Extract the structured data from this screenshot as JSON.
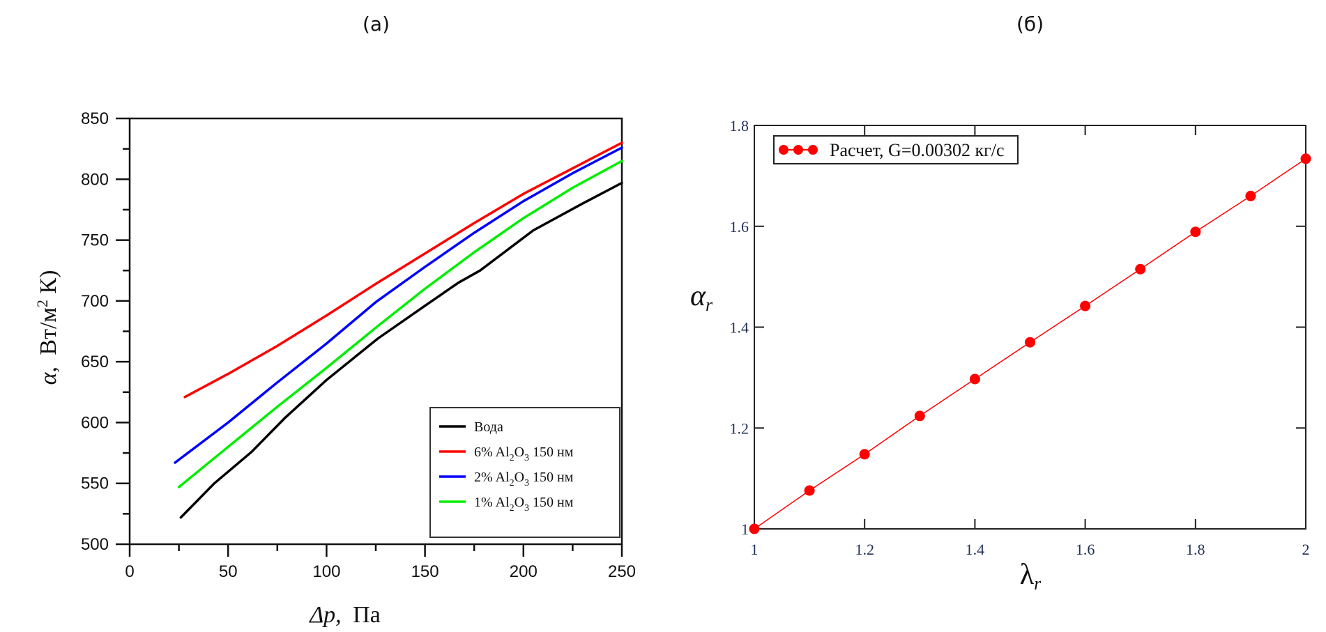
{
  "panels": {
    "a_label": "(a)",
    "b_label": "(б)"
  },
  "chart_data": [
    {
      "type": "line",
      "panel": "(a)",
      "title": "",
      "xlabel": "Δp, Па",
      "xlabel_italic": "Δp,",
      "xlabel_unit": "Па",
      "ylabel": "α, Вт/м² К)",
      "ylabel_symbol": "α,",
      "ylabel_unit": "Вт/м",
      "ylabel_sup": "2",
      "ylabel_tail": " К)",
      "xlim": [
        0,
        250
      ],
      "ylim": [
        500,
        850
      ],
      "xticks": [
        0,
        50,
        100,
        150,
        200,
        250
      ],
      "xtick_labels": [
        "0",
        "50",
        "100",
        "150",
        "200",
        "250"
      ],
      "yticks": [
        500,
        550,
        600,
        650,
        700,
        750,
        800,
        850
      ],
      "ytick_labels": [
        "500",
        "550",
        "600",
        "650",
        "700",
        "750",
        "800",
        "850"
      ],
      "grid": false,
      "legend_position": "bottom-right",
      "series": [
        {
          "name": "Вода",
          "color": "#000000",
          "x": [
            26,
            43,
            62,
            79,
            100,
            126,
            150,
            167,
            178,
            205,
            230,
            250
          ],
          "y": [
            522,
            550,
            576,
            604,
            635,
            669,
            696,
            715,
            725,
            758,
            780,
            797
          ]
        },
        {
          "name": "6% Al₂O₃ 150 нм",
          "color": "#ff0000",
          "x": [
            28,
            50,
            75,
            100,
            125,
            150,
            175,
            200,
            225,
            250
          ],
          "y": [
            621,
            640,
            663,
            688,
            714,
            739,
            764,
            788,
            809,
            830
          ]
        },
        {
          "name": "2% Al₂O₃ 150 нм",
          "color": "#0000ff",
          "x": [
            23,
            50,
            75,
            100,
            125,
            150,
            175,
            200,
            225,
            250
          ],
          "y": [
            567,
            600,
            633,
            665,
            699,
            728,
            756,
            782,
            805,
            826
          ]
        },
        {
          "name": "1% Al₂O₃ 150 нм",
          "color": "#00ee00",
          "x": [
            25,
            50,
            75,
            100,
            125,
            150,
            175,
            200,
            225,
            250
          ],
          "y": [
            547,
            580,
            613,
            645,
            678,
            710,
            740,
            768,
            793,
            815
          ]
        }
      ],
      "legend": [
        {
          "pre": "Вода",
          "sub1": "",
          "mid": "",
          "sub2": "",
          "post": ""
        },
        {
          "pre": "6% Al",
          "sub1": "2",
          "mid": "O",
          "sub2": "3",
          "post": " 150 нм"
        },
        {
          "pre": "2% Al",
          "sub1": "2",
          "mid": "O",
          "sub2": "3",
          "post": " 150 нм"
        },
        {
          "pre": "1% Al",
          "sub1": "2",
          "mid": "O",
          "sub2": "3",
          "post": " 150 нм"
        }
      ]
    },
    {
      "type": "line",
      "panel": "(б)",
      "title": "",
      "xlabel": "λr",
      "xlabel_main": "λ",
      "xlabel_sub": "r",
      "ylabel": "αr",
      "ylabel_main": "α",
      "ylabel_sub": "r",
      "xlim": [
        1,
        2
      ],
      "ylim": [
        1,
        1.8
      ],
      "xticks": [
        1,
        1.2,
        1.4,
        1.6,
        1.8,
        2
      ],
      "xtick_labels": [
        "1",
        "1.2",
        "1.4",
        "1.6",
        "1.8",
        "2"
      ],
      "yticks": [
        1,
        1.2,
        1.4,
        1.6,
        1.8
      ],
      "ytick_labels": [
        "1",
        "1.2",
        "1.4",
        "1.6",
        "1.8"
      ],
      "grid": false,
      "legend_position": "top-left",
      "series": [
        {
          "name": "Расчет, G=0.00302 кг/с",
          "color": "#ff0000",
          "markers": true,
          "x": [
            1.0,
            1.1,
            1.2,
            1.3,
            1.4,
            1.5,
            1.6,
            1.7,
            1.8,
            1.9,
            2.0
          ],
          "y": [
            1.0,
            1.076,
            1.148,
            1.224,
            1.297,
            1.37,
            1.442,
            1.515,
            1.589,
            1.66,
            1.734
          ]
        }
      ]
    }
  ]
}
